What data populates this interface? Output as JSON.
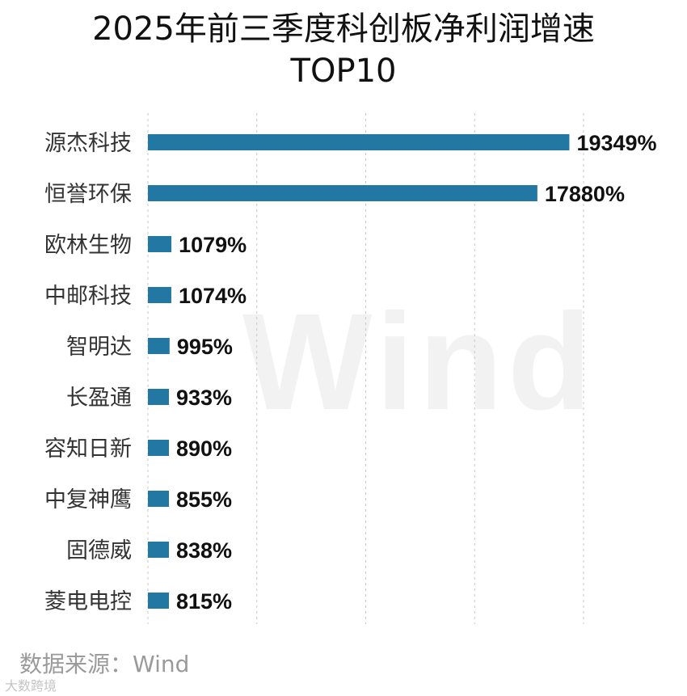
{
  "chart_data": {
    "type": "bar",
    "orientation": "horizontal",
    "title_line1": "2025年前三季度科创板净利润增速",
    "title_line2": "TOP10",
    "categories": [
      "源杰科技",
      "恒誉环保",
      "欧林生物",
      "中邮科技",
      "智明达",
      "长盈通",
      "容知日新",
      "中复神鹰",
      "固德威",
      "菱电电控"
    ],
    "values": [
      19349,
      17880,
      1079,
      1074,
      995,
      933,
      890,
      855,
      838,
      815
    ],
    "value_labels": [
      "19349%",
      "17880%",
      "1079%",
      "1074%",
      "995%",
      "933%",
      "890%",
      "855%",
      "838%",
      "815%"
    ],
    "unit": "%",
    "xlim": [
      0,
      20000
    ],
    "grid": "vertical dashed",
    "legend": "none",
    "bar_color": "#2277a3"
  },
  "source_text": "数据来源：Wind",
  "watermark_text": "Wind",
  "credit_text": "大数跨境"
}
